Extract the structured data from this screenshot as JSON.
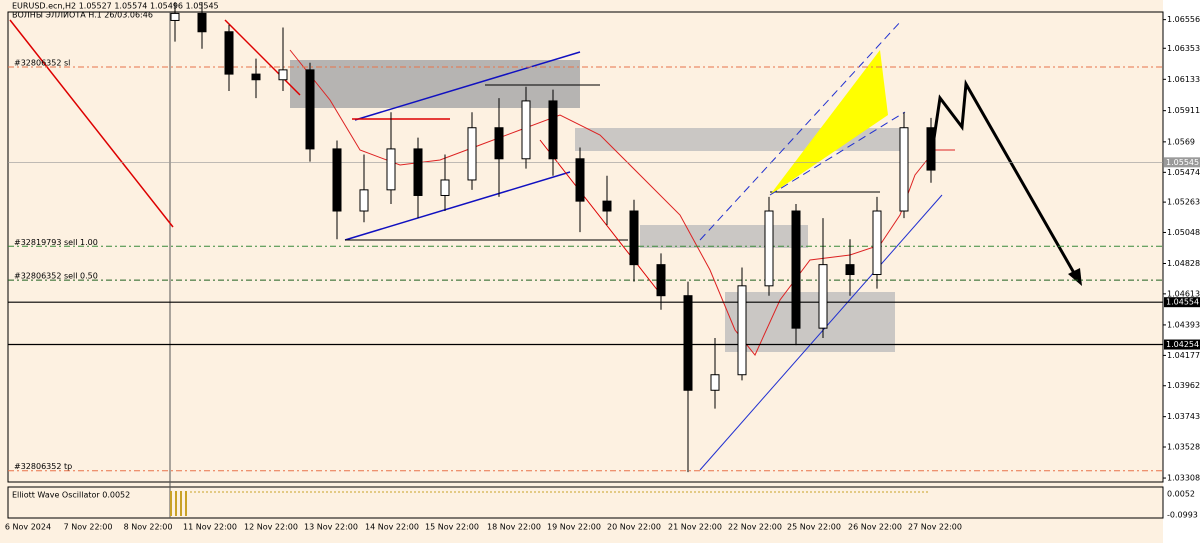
{
  "header": {
    "symbol": "EURUSD.ecn,H2  1.05527 1.05574 1.05496 1.05545",
    "indicator": "ВОЛНЫ ЭЛЛИОТА H.1 26/03.06:46"
  },
  "chart_data": {
    "type": "candlestick",
    "open": [
      1.0655,
      1.066,
      1.0647,
      1.0617,
      1.0613,
      1.062,
      1.0564,
      1.052,
      1.0535,
      1.0564,
      1.0531,
      1.0542,
      1.0579,
      1.0557,
      1.0598,
      1.0557,
      1.0527,
      1.052,
      1.0482,
      1.046,
      1.0393,
      1.0404,
      1.0467,
      1.052,
      1.0437,
      1.0482,
      1.0475,
      1.052,
      1.0579
    ],
    "high": [
      1.0668,
      1.0668,
      1.0652,
      1.0628,
      1.065,
      1.0625,
      1.057,
      1.056,
      1.059,
      1.0572,
      1.056,
      1.059,
      1.06,
      1.0608,
      1.0606,
      1.0565,
      1.0545,
      1.0528,
      1.049,
      1.047,
      1.043,
      1.048,
      1.053,
      1.0525,
      1.0515,
      1.05,
      1.053,
      1.059,
      1.0586
    ],
    "low": [
      1.064,
      1.0635,
      1.0605,
      1.06,
      1.0605,
      1.0555,
      1.05,
      1.0512,
      1.0525,
      1.0515,
      1.052,
      1.0535,
      1.053,
      1.055,
      1.0545,
      1.0505,
      1.051,
      1.047,
      1.045,
      1.0335,
      1.038,
      1.04,
      1.046,
      1.0425,
      1.043,
      1.046,
      1.0465,
      1.0515,
      1.054
    ],
    "close": [
      1.066,
      1.0647,
      1.0617,
      1.0613,
      1.062,
      1.0564,
      1.052,
      1.0535,
      1.0564,
      1.0531,
      1.0542,
      1.0579,
      1.0557,
      1.0598,
      1.0557,
      1.0527,
      1.052,
      1.0482,
      1.046,
      1.0393,
      1.0404,
      1.0467,
      1.052,
      1.0437,
      1.0482,
      1.0475,
      1.052,
      1.0579,
      1.0549
    ],
    "ylim": [
      1.0328,
      1.0661
    ],
    "yticks": [
      1.06556,
      1.06353,
      1.06133,
      1.05911,
      1.0569,
      1.05474,
      1.05263,
      1.05048,
      1.04828,
      1.04613,
      1.04393,
      1.04177,
      1.03962,
      1.03743,
      1.03528,
      1.03308
    ],
    "price_labels": [
      {
        "value": 1.05545,
        "color": "#9a9a9a"
      },
      {
        "value": 1.04554,
        "color": "#000000"
      },
      {
        "value": 1.04254,
        "color": "#000000"
      }
    ],
    "levels": [
      {
        "label": "#32806352 sl",
        "value": 1.0622,
        "color": "#e8734a"
      },
      {
        "label": "#32819793 sell 1.00",
        "value": 1.0495,
        "color": "#3a8a3a"
      },
      {
        "label": "#32806352 sell 0.50",
        "value": 1.0471,
        "color": "#1f5f1f"
      },
      {
        "label": "#32806352 tp",
        "value": 1.0336,
        "color": "#e8734a"
      }
    ],
    "x_labels": [
      "6 Nov 2024",
      "7 Nov 22:00",
      "8 Nov 22:00",
      "11 Nov 22:00",
      "12 Nov 22:00",
      "13 Nov 22:00",
      "14 Nov 22:00",
      "15 Nov 22:00",
      "18 Nov 22:00",
      "19 Nov 22:00",
      "20 Nov 22:00",
      "21 Nov 22:00",
      "22 Nov 22:00",
      "25 Nov 22:00",
      "26 Nov 22:00",
      "27 Nov 22:00"
    ]
  },
  "oscillator": {
    "label": "Elliott Wave Oscillator 0.0052",
    "axis_labels": [
      "0.0052",
      "-0.0993"
    ]
  }
}
